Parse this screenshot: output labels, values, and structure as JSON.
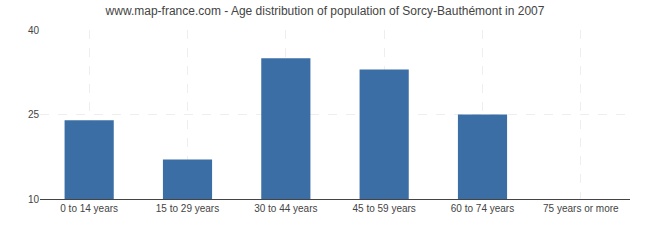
{
  "chart_data": {
    "type": "bar",
    "title": "www.map-france.com - Age distribution of population of Sorcy-Bauthémont in 2007",
    "categories": [
      "0 to 14 years",
      "15 to 29 years",
      "30 to 44 years",
      "45 to 59 years",
      "60 to 74 years",
      "75 years or more"
    ],
    "values": [
      24,
      17,
      35,
      33,
      25,
      10
    ],
    "color": "#3a6ea5",
    "ylim": [
      10,
      40
    ],
    "yticks": [
      10,
      25,
      40
    ],
    "grid": true
  }
}
